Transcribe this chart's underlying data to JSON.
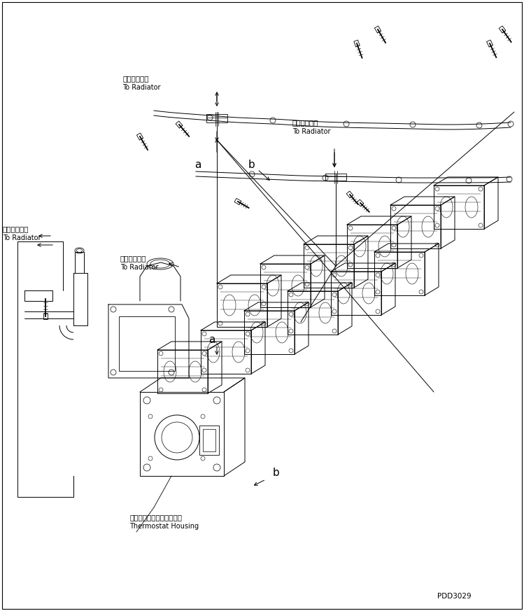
{
  "fig_width": 7.49,
  "fig_height": 8.73,
  "dpi": 100,
  "bg_color": "#ffffff",
  "line_color": "#000000",
  "part_number": "PDD3029",
  "labels": {
    "rad1_jp": "ラジェータへ",
    "rad1_en": "To Radiator",
    "rad2_jp": "ラジェータへ",
    "rad2_en": "To Radiator",
    "rad3_jp": "ラジェータへ",
    "rad3_en": "To Radiator",
    "rad4_jp": "ラジェータへ",
    "rad4_en": "To Radiator",
    "thermo_jp": "サーモスタットハウジング",
    "thermo_en": "Thermostat Housing",
    "marker_a": "a",
    "marker_b": "b"
  },
  "lw": 0.7
}
